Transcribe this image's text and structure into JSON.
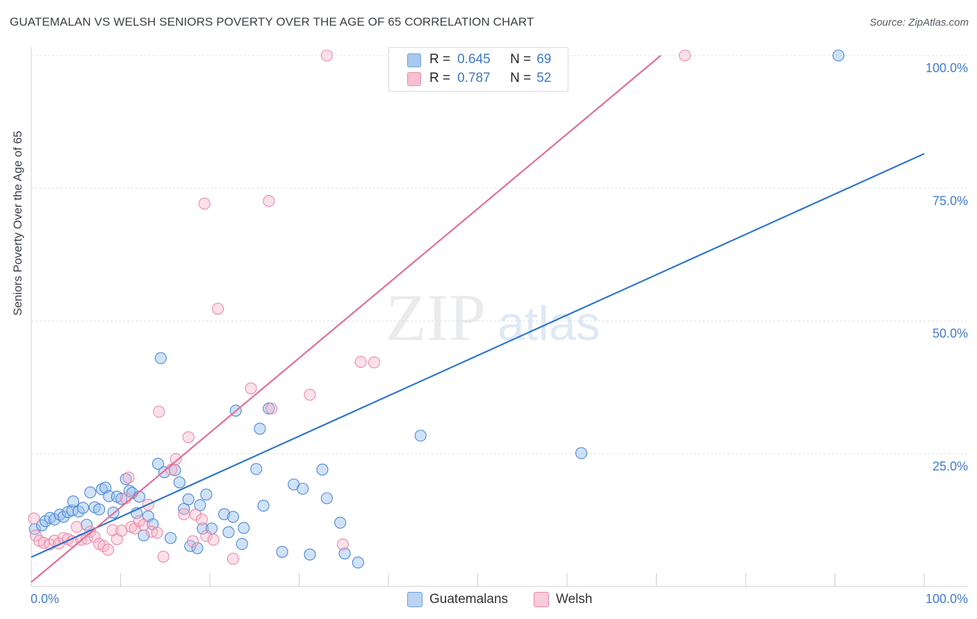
{
  "header": {
    "title": "GUATEMALAN VS WELSH SENIORS POVERTY OVER THE AGE OF 65 CORRELATION CHART",
    "source": "Source: ZipAtlas.com"
  },
  "watermark": {
    "zip": "ZIP",
    "atlas": "atlas"
  },
  "legend": {
    "r_label": "R =",
    "n_label": "N =",
    "rows": [
      {
        "r": "0.645",
        "n": "69",
        "color": "#a9c8ef",
        "border": "#6a9fdc"
      },
      {
        "r": "0.787",
        "n": "52",
        "color": "#f7bfd0",
        "border": "#e88aa8"
      }
    ]
  },
  "bottom_legend": [
    {
      "label": "Guatemalans",
      "color": "#bcd4f3",
      "border": "#6a9fdc"
    },
    {
      "label": "Welsh",
      "color": "#f9ccd9",
      "border": "#e88aa8"
    }
  ],
  "chart_data": {
    "type": "scatter",
    "title": "GUATEMALAN VS WELSH SENIORS POVERTY OVER THE AGE OF 65 CORRELATION CHART",
    "xlabel": "",
    "ylabel": "Seniors Poverty Over the Age of 65",
    "xlim": [
      0,
      100
    ],
    "ylim": [
      0,
      100
    ],
    "x_tick_labels": [
      "0.0%",
      "100.0%"
    ],
    "y_tick_labels": [
      "25.0%",
      "50.0%",
      "75.0%",
      "100.0%"
    ],
    "y_ticks": [
      25,
      50,
      75,
      100
    ],
    "grid": true,
    "series": [
      {
        "name": "Guatemalans",
        "color": "#4a86d4",
        "fill": "rgba(150,190,240,0.45)",
        "trend": {
          "x": [
            0,
            100
          ],
          "y": [
            5.5,
            81.5
          ],
          "color": "#2d74cc"
        },
        "points": [
          [
            0.4,
            10.8
          ],
          [
            1.2,
            11.5
          ],
          [
            1.6,
            12.3
          ],
          [
            2.1,
            12.9
          ],
          [
            2.6,
            12.6
          ],
          [
            3.2,
            13.5
          ],
          [
            3.6,
            13.1
          ],
          [
            4.1,
            14.0
          ],
          [
            4.6,
            14.3
          ],
          [
            4.7,
            16.0
          ],
          [
            5.3,
            14.1
          ],
          [
            5.8,
            14.8
          ],
          [
            6.2,
            11.6
          ],
          [
            6.6,
            17.7
          ],
          [
            7.1,
            14.9
          ],
          [
            7.6,
            14.5
          ],
          [
            7.9,
            18.3
          ],
          [
            8.3,
            18.6
          ],
          [
            8.7,
            17.0
          ],
          [
            9.2,
            13.9
          ],
          [
            9.6,
            16.9
          ],
          [
            10.1,
            16.5
          ],
          [
            10.6,
            20.2
          ],
          [
            11.0,
            18.0
          ],
          [
            11.3,
            17.6
          ],
          [
            11.8,
            13.8
          ],
          [
            12.1,
            16.9
          ],
          [
            12.6,
            9.6
          ],
          [
            13.1,
            13.2
          ],
          [
            13.6,
            11.7
          ],
          [
            14.2,
            23.1
          ],
          [
            14.5,
            43.0
          ],
          [
            14.9,
            21.5
          ],
          [
            15.6,
            9.1
          ],
          [
            16.1,
            21.9
          ],
          [
            16.6,
            19.6
          ],
          [
            17.1,
            14.6
          ],
          [
            17.6,
            16.4
          ],
          [
            17.8,
            7.6
          ],
          [
            18.6,
            7.2
          ],
          [
            18.9,
            15.3
          ],
          [
            19.2,
            10.9
          ],
          [
            19.6,
            17.3
          ],
          [
            20.2,
            10.9
          ],
          [
            21.6,
            13.6
          ],
          [
            22.1,
            10.2
          ],
          [
            22.6,
            13.1
          ],
          [
            22.9,
            33.1
          ],
          [
            23.6,
            8.0
          ],
          [
            23.8,
            11.0
          ],
          [
            25.2,
            22.1
          ],
          [
            25.6,
            29.7
          ],
          [
            26.0,
            15.2
          ],
          [
            26.6,
            33.5
          ],
          [
            28.1,
            6.5
          ],
          [
            29.4,
            19.2
          ],
          [
            30.4,
            18.4
          ],
          [
            31.2,
            6.0
          ],
          [
            32.6,
            22.0
          ],
          [
            33.1,
            16.6
          ],
          [
            34.6,
            12.0
          ],
          [
            35.1,
            6.2
          ],
          [
            36.6,
            4.5
          ],
          [
            43.6,
            28.4
          ],
          [
            54.6,
            100.0
          ],
          [
            55.8,
            100.0
          ],
          [
            56.6,
            100.0
          ],
          [
            57.2,
            100.0
          ],
          [
            61.6,
            25.1
          ],
          [
            90.4,
            100.0
          ]
        ]
      },
      {
        "name": "Welsh",
        "color": "#e88aa8",
        "fill": "rgba(248,180,200,0.40)",
        "trend": {
          "x": [
            0,
            70.5
          ],
          "y": [
            0.8,
            100
          ],
          "color": "#e36c93"
        },
        "points": [
          [
            0.3,
            12.8
          ],
          [
            0.5,
            9.6
          ],
          [
            0.9,
            8.6
          ],
          [
            1.4,
            8.2
          ],
          [
            2.1,
            7.9
          ],
          [
            2.6,
            8.6
          ],
          [
            3.1,
            8.1
          ],
          [
            3.6,
            9.1
          ],
          [
            4.1,
            8.9
          ],
          [
            4.6,
            8.5
          ],
          [
            5.1,
            11.2
          ],
          [
            5.6,
            8.8
          ],
          [
            6.2,
            9.0
          ],
          [
            6.6,
            10.3
          ],
          [
            7.1,
            9.3
          ],
          [
            7.6,
            8.0
          ],
          [
            8.1,
            7.6
          ],
          [
            8.6,
            6.9
          ],
          [
            9.1,
            10.6
          ],
          [
            9.6,
            8.9
          ],
          [
            10.1,
            10.5
          ],
          [
            10.6,
            16.6
          ],
          [
            10.9,
            20.5
          ],
          [
            11.2,
            11.2
          ],
          [
            11.6,
            10.9
          ],
          [
            12.1,
            12.3
          ],
          [
            12.6,
            11.6
          ],
          [
            13.1,
            15.4
          ],
          [
            13.5,
            10.3
          ],
          [
            14.1,
            10.1
          ],
          [
            14.3,
            32.9
          ],
          [
            14.8,
            5.6
          ],
          [
            15.7,
            22.0
          ],
          [
            16.2,
            24.0
          ],
          [
            17.1,
            13.6
          ],
          [
            17.6,
            28.1
          ],
          [
            18.1,
            8.5
          ],
          [
            18.4,
            13.5
          ],
          [
            19.1,
            12.6
          ],
          [
            19.4,
            72.1
          ],
          [
            19.6,
            9.5
          ],
          [
            20.4,
            8.8
          ],
          [
            20.9,
            52.3
          ],
          [
            22.6,
            5.2
          ],
          [
            24.6,
            37.3
          ],
          [
            26.6,
            72.6
          ],
          [
            26.9,
            33.5
          ],
          [
            31.2,
            36.1
          ],
          [
            33.1,
            100.0
          ],
          [
            34.9,
            7.9
          ],
          [
            36.9,
            42.3
          ],
          [
            38.4,
            42.2
          ],
          [
            73.2,
            100.0
          ]
        ]
      }
    ]
  }
}
